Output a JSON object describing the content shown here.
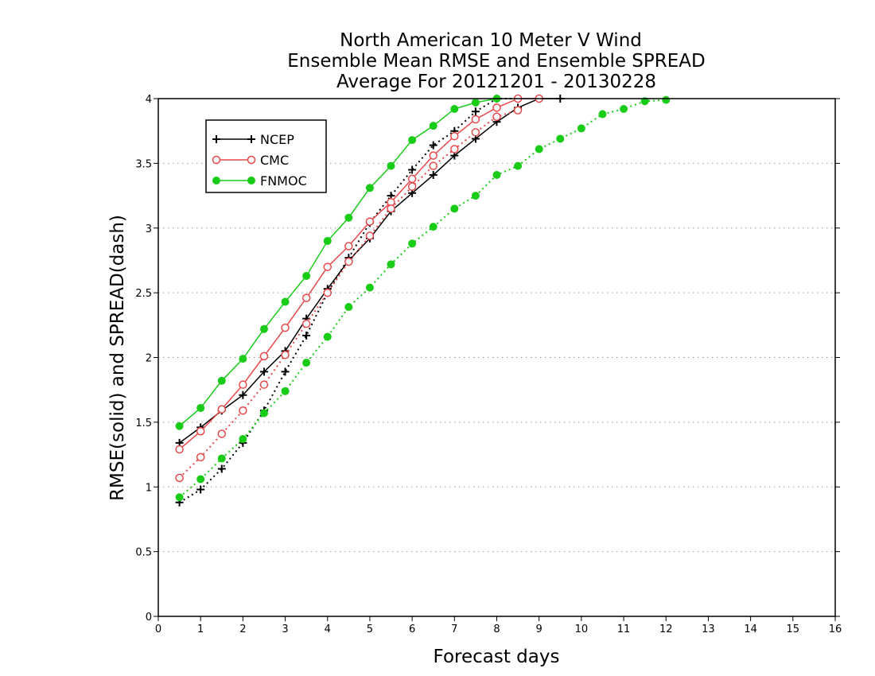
{
  "chart_data": {
    "type": "line",
    "title_lines": [
      "North American 10 Meter V Wind",
      "Ensemble Mean RMSE and Ensemble SPREAD",
      "Average For 20121201 - 20130228"
    ],
    "xlabel": "Forecast days",
    "ylabel": "RMSE(solid) and SPREAD(dash)",
    "xlim": [
      0,
      16
    ],
    "ylim": [
      0,
      4
    ],
    "x_ticks": [
      "0",
      "1",
      "2",
      "3",
      "4",
      "5",
      "6",
      "7",
      "8",
      "9",
      "10",
      "11",
      "12",
      "13",
      "14",
      "15",
      "16"
    ],
    "y_ticks": [
      "0",
      "0.5",
      "1",
      "1.5",
      "2",
      "2.5",
      "3",
      "3.5",
      "4"
    ],
    "grid": "horizontal dotted",
    "legend_position": "top-left",
    "colors": {
      "NCEP": "#000000",
      "CMC": "#e8484a",
      "FNMOC": "#18cc18"
    },
    "series": [
      {
        "name": "NCEP",
        "metric": "RMSE",
        "style": "solid",
        "marker": "plus",
        "x": [
          0.5,
          1,
          1.5,
          2,
          2.5,
          3,
          3.5,
          4,
          4.5,
          5,
          5.5,
          6,
          6.5,
          7,
          7.5,
          8,
          8.5,
          9,
          9.5
        ],
        "y": [
          1.34,
          1.46,
          1.59,
          1.71,
          1.89,
          2.05,
          2.3,
          2.53,
          2.75,
          2.92,
          3.13,
          3.27,
          3.41,
          3.56,
          3.69,
          3.82,
          3.93,
          4.0,
          4.0
        ]
      },
      {
        "name": "NCEP",
        "metric": "SPREAD",
        "style": "dotted",
        "marker": "plus",
        "x": [
          0.5,
          1,
          1.5,
          2,
          2.5,
          3,
          3.5,
          4,
          4.5,
          5,
          5.5,
          6,
          6.5,
          7,
          7.5,
          8,
          8.5
        ],
        "y": [
          0.88,
          0.98,
          1.14,
          1.34,
          1.59,
          1.89,
          2.17,
          2.5,
          2.77,
          3.04,
          3.25,
          3.45,
          3.64,
          3.75,
          3.9,
          4.0,
          4.0
        ]
      },
      {
        "name": "CMC",
        "metric": "RMSE",
        "style": "solid",
        "marker": "circle",
        "x": [
          0.5,
          1,
          1.5,
          2,
          2.5,
          3,
          3.5,
          4,
          4.5,
          5,
          5.5,
          6,
          6.5,
          7,
          7.5,
          8,
          8.5,
          9
        ],
        "y": [
          1.29,
          1.43,
          1.6,
          1.79,
          2.01,
          2.23,
          2.46,
          2.7,
          2.86,
          3.05,
          3.2,
          3.38,
          3.56,
          3.71,
          3.84,
          3.93,
          4.0,
          4.0
        ]
      },
      {
        "name": "CMC",
        "metric": "SPREAD",
        "style": "dotted",
        "marker": "circle",
        "x": [
          0.5,
          1,
          1.5,
          2,
          2.5,
          3,
          3.5,
          4,
          4.5,
          5,
          5.5,
          6,
          6.5,
          7,
          7.5,
          8,
          8.5
        ],
        "y": [
          1.07,
          1.23,
          1.41,
          1.59,
          1.79,
          2.02,
          2.26,
          2.5,
          2.74,
          2.94,
          3.15,
          3.32,
          3.48,
          3.61,
          3.74,
          3.86,
          3.91
        ]
      },
      {
        "name": "FNMOC",
        "metric": "RMSE",
        "style": "solid",
        "marker": "dot",
        "x": [
          0.5,
          1,
          1.5,
          2,
          2.5,
          3,
          3.5,
          4,
          4.5,
          5,
          5.5,
          6,
          6.5,
          7,
          7.5,
          8
        ],
        "y": [
          1.47,
          1.61,
          1.82,
          1.99,
          2.22,
          2.43,
          2.63,
          2.9,
          3.08,
          3.31,
          3.48,
          3.68,
          3.79,
          3.92,
          3.97,
          4.0
        ]
      },
      {
        "name": "FNMOC",
        "metric": "SPREAD",
        "style": "dotted",
        "marker": "dot",
        "x": [
          0.5,
          1,
          1.5,
          2,
          2.5,
          3,
          3.5,
          4,
          4.5,
          5,
          5.5,
          6,
          6.5,
          7,
          7.5,
          8,
          8.5,
          9,
          9.5,
          10,
          10.5,
          11,
          11.5,
          12
        ],
        "y": [
          0.92,
          1.06,
          1.22,
          1.37,
          1.57,
          1.74,
          1.96,
          2.16,
          2.39,
          2.54,
          2.72,
          2.88,
          3.01,
          3.15,
          3.25,
          3.41,
          3.48,
          3.61,
          3.69,
          3.77,
          3.88,
          3.92,
          3.98,
          3.99
        ]
      }
    ]
  }
}
